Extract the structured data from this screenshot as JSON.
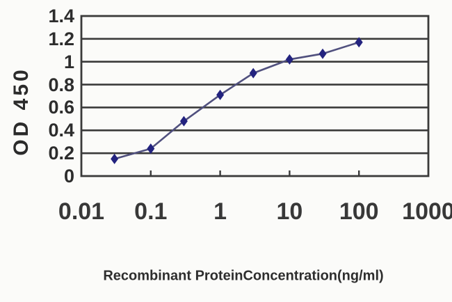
{
  "chart_data": {
    "type": "line",
    "title": "",
    "xlabel": "Recombinant ProteinConcentration(ng/ml)",
    "ylabel": "OD 450",
    "x_scale": "log",
    "xlim": [
      0.01,
      1000
    ],
    "ylim": [
      0,
      1.4
    ],
    "x_tick_values": [
      0.01,
      0.1,
      1,
      10,
      100,
      1000
    ],
    "x_tick_labels": [
      "0.01",
      "0.1",
      "1",
      "10",
      "100",
      "1000"
    ],
    "y_tick_values": [
      0,
      0.2,
      0.4,
      0.6,
      0.8,
      1,
      1.2,
      1.4
    ],
    "y_tick_labels": [
      "0",
      "0.2",
      "0.4",
      "0.6",
      "0.8",
      "1",
      "1.2",
      "1.4"
    ],
    "grid": "horizontal",
    "legend": "none",
    "series": [
      {
        "name": "OD 450",
        "marker": "diamond",
        "x": [
          0.03,
          0.1,
          0.3,
          1,
          3,
          10,
          30,
          100
        ],
        "y": [
          0.15,
          0.24,
          0.48,
          0.71,
          0.9,
          1.02,
          1.07,
          1.17
        ]
      }
    ],
    "colors": {
      "marker": "#23237f",
      "line": "#50507e",
      "grid": "#3a3a3a",
      "text": "#2e2e2e",
      "background": "#fbfbf9"
    }
  }
}
